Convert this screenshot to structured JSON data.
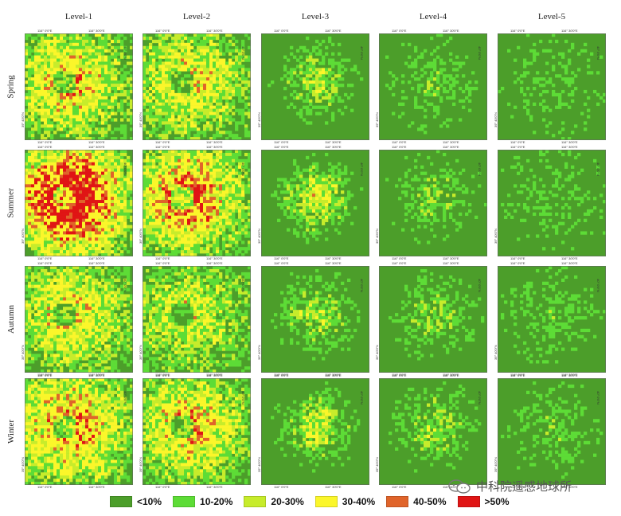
{
  "columns": [
    "Level-1",
    "Level-2",
    "Level-3",
    "Level-4",
    "Level-5"
  ],
  "rows": [
    "Spring",
    "Summer",
    "Autumn",
    "Winter"
  ],
  "ticks": {
    "top_left": "116° 0′0″E",
    "top_right": "116° 30′0″E",
    "bottom_left": "116° 0′0″E",
    "bottom_right": "116° 30′0″E",
    "right_upper": "40° 0′0″N",
    "left_lower": "39° 40′0″N"
  },
  "legend": [
    {
      "label": "<10%",
      "color": "#4c9e2a"
    },
    {
      "label": "10-20%",
      "color": "#5ddc36"
    },
    {
      "label": "20-30%",
      "color": "#c7ec2b"
    },
    {
      "label": "30-40%",
      "color": "#fbf62a"
    },
    {
      "label": "40-50%",
      "color": "#e0642a"
    },
    {
      "label": ">50%",
      "color": "#e01515"
    }
  ],
  "watermark": {
    "text": "中科院遥感地球所",
    "icon": "wechat-icon"
  }
}
